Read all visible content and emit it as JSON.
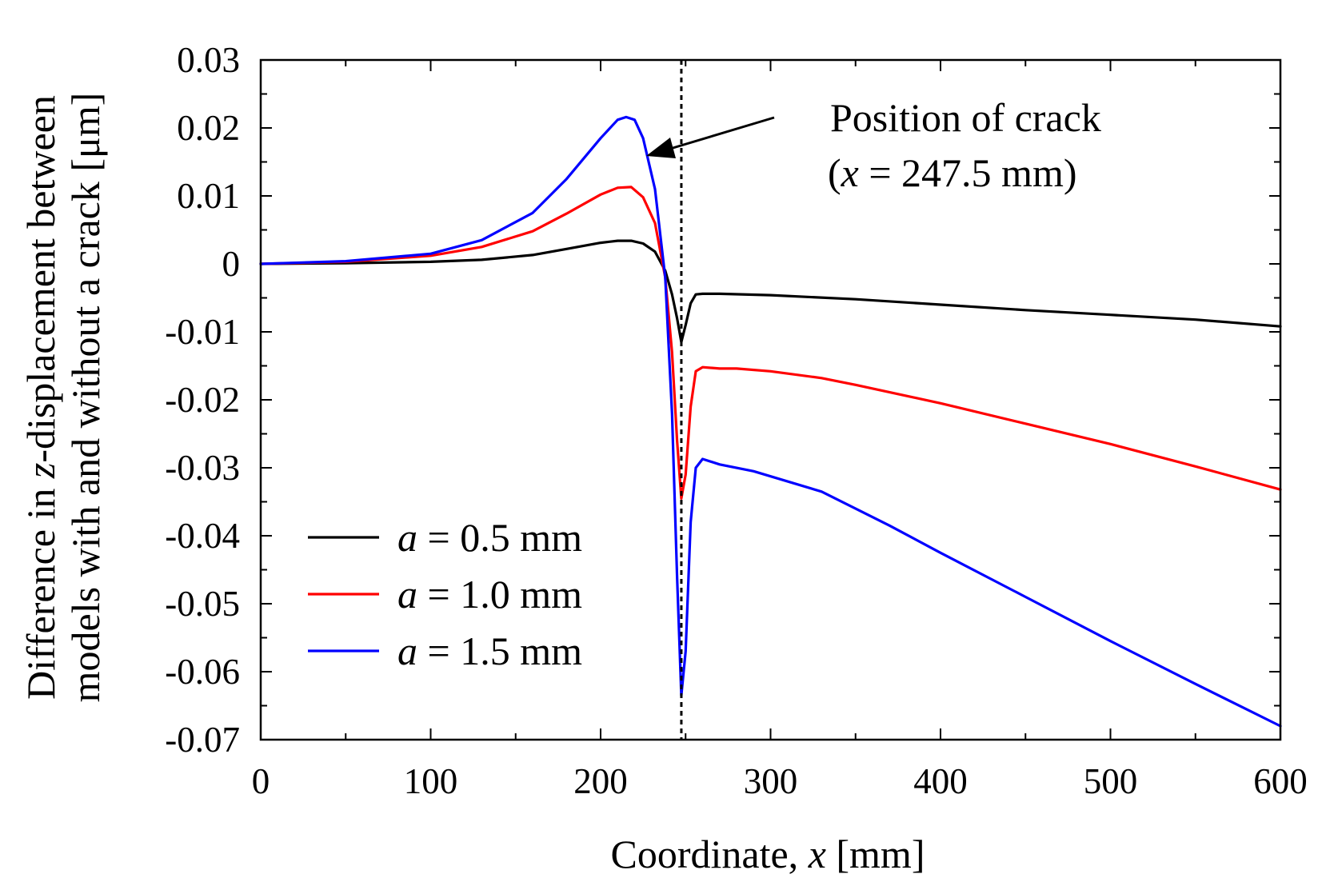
{
  "chart_data": {
    "type": "line",
    "title": "",
    "xlabel_prefix": "Coordinate, ",
    "xlabel_var": "x",
    "xlabel_suffix": " [mm]",
    "ylabel_line1_prefix": "Difference in ",
    "ylabel_line1_var": "z",
    "ylabel_line1_suffix": "-displacement between",
    "ylabel_line2": "models with and without a crack [μm]",
    "xlim": [
      0,
      600
    ],
    "ylim": [
      -0.07,
      0.03
    ],
    "xticks": [
      0,
      100,
      200,
      300,
      400,
      500,
      600
    ],
    "yticks": [
      0.03,
      0.02,
      0.01,
      0,
      -0.01,
      -0.02,
      -0.03,
      -0.04,
      -0.05,
      -0.06,
      -0.07
    ],
    "xtick_labels": [
      "0",
      "100",
      "200",
      "300",
      "400",
      "500",
      "600"
    ],
    "ytick_labels": [
      "0.03",
      "0.02",
      "0.01",
      "0",
      "-0.01",
      "-0.02",
      "-0.03",
      "-0.04",
      "-0.05",
      "-0.06",
      "-0.07"
    ],
    "grid": false,
    "legend_position": "bottom-left",
    "crack_position": 247.5,
    "annotation": {
      "line1": "Position of crack",
      "line2_open": "(",
      "line2_var": "x",
      "line2_rest": " = 247.5 mm)"
    },
    "series": [
      {
        "name": "a = 0.5 mm",
        "legend_var": "a",
        "legend_rest": " = 0.5 mm",
        "color": "#000000",
        "x": [
          0,
          50,
          100,
          130,
          160,
          180,
          200,
          210,
          218,
          225,
          232,
          238,
          242,
          245,
          247.5,
          250,
          253,
          256,
          260,
          270,
          300,
          350,
          400,
          450,
          500,
          550,
          600
        ],
        "y": [
          0,
          0.0001,
          0.0003,
          0.0006,
          0.0013,
          0.0022,
          0.0031,
          0.0034,
          0.0034,
          0.003,
          0.0018,
          -0.001,
          -0.0045,
          -0.008,
          -0.0115,
          -0.009,
          -0.0058,
          -0.0045,
          -0.0044,
          -0.0044,
          -0.0046,
          -0.0052,
          -0.006,
          -0.0068,
          -0.0075,
          -0.0082,
          -0.0092
        ]
      },
      {
        "name": "a = 1.0 mm",
        "legend_var": "a",
        "legend_rest": " = 1.0 mm",
        "color": "#ff0000",
        "x": [
          0,
          50,
          100,
          130,
          160,
          180,
          200,
          210,
          218,
          225,
          232,
          238,
          242,
          245,
          247.5,
          250,
          253,
          256,
          260,
          270,
          280,
          300,
          330,
          350,
          400,
          450,
          500,
          550,
          600
        ],
        "y": [
          0,
          0.0003,
          0.0012,
          0.0025,
          0.0048,
          0.0074,
          0.0102,
          0.0112,
          0.0113,
          0.0098,
          0.006,
          -0.002,
          -0.013,
          -0.026,
          -0.0345,
          -0.031,
          -0.021,
          -0.0158,
          -0.0152,
          -0.0154,
          -0.0154,
          -0.0158,
          -0.0168,
          -0.0178,
          -0.0205,
          -0.0235,
          -0.0265,
          -0.0298,
          -0.0332
        ]
      },
      {
        "name": "a = 1.5 mm",
        "legend_var": "a",
        "legend_rest": " = 1.5 mm",
        "color": "#0000ff",
        "x": [
          0,
          50,
          100,
          130,
          160,
          180,
          200,
          210,
          215,
          220,
          225,
          232,
          238,
          242,
          245,
          247.5,
          250,
          253,
          256,
          260,
          270,
          290,
          330,
          370,
          400,
          450,
          500,
          550,
          600
        ],
        "y": [
          0,
          0.0004,
          0.0015,
          0.0035,
          0.0075,
          0.0125,
          0.0185,
          0.0212,
          0.0216,
          0.0212,
          0.0185,
          0.011,
          -0.002,
          -0.022,
          -0.046,
          -0.0635,
          -0.057,
          -0.038,
          -0.03,
          -0.0287,
          -0.0295,
          -0.0305,
          -0.0335,
          -0.0385,
          -0.0425,
          -0.049,
          -0.0555,
          -0.0618,
          -0.068
        ]
      }
    ]
  }
}
